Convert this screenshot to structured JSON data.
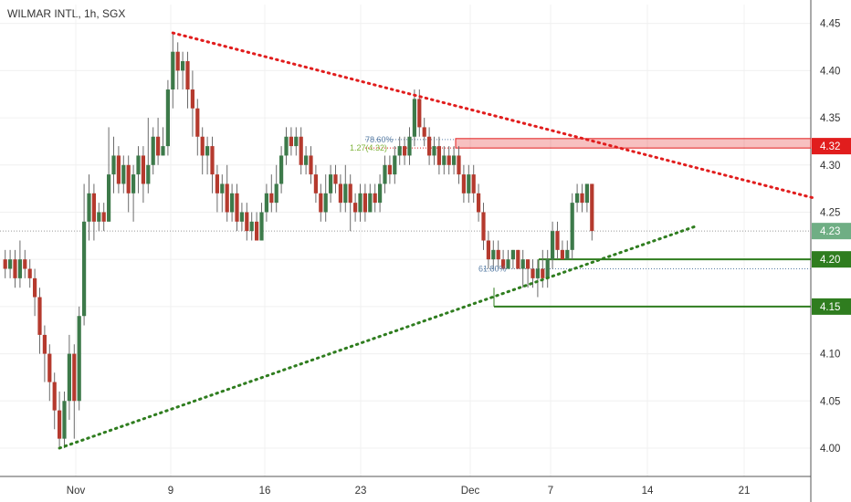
{
  "header": {
    "title": "WILMAR INTL, 1h, SGX"
  },
  "colors": {
    "bull": "#3d7a4a",
    "bear": "#b53a2e",
    "resistance": "#e11d1d",
    "support": "#2f7d1f",
    "current": "#6fae84",
    "grid": "#f0f0f0",
    "axis": "#555555"
  },
  "chart_data": {
    "type": "candlestick",
    "symbol": "WILMAR INTL",
    "interval": "1h",
    "exchange": "SGX",
    "y_axis": {
      "min": 3.97,
      "max": 4.47,
      "ticks": [
        "4.00",
        "4.05",
        "4.10",
        "4.15",
        "4.20",
        "4.25",
        "4.30",
        "4.35",
        "4.40",
        "4.45"
      ]
    },
    "x_axis": {
      "ticks": [
        "Nov",
        "9",
        "16",
        "23",
        "Dec",
        "7",
        "14",
        "21"
      ]
    },
    "price_tags": [
      {
        "label": "4.32",
        "value": 4.32,
        "kind": "resistance"
      },
      {
        "label": "4.23",
        "value": 4.23,
        "kind": "current"
      },
      {
        "label": "4.20",
        "value": 4.2,
        "kind": "support"
      },
      {
        "label": "4.15",
        "value": 4.15,
        "kind": "support"
      }
    ],
    "resistance_zone": {
      "from": 4.318,
      "to": 4.328
    },
    "current_price": 4.23,
    "support_levels": [
      4.2,
      4.15
    ],
    "trendlines": [
      {
        "name": "descending",
        "from": {
          "bar": 34,
          "price": 4.44
        },
        "to": {
          "bar": 164,
          "price": 4.265
        }
      },
      {
        "name": "ascending",
        "from": {
          "bar": 11,
          "price": 4.0
        },
        "to": {
          "bar": 140,
          "price": 4.235
        }
      }
    ],
    "fib_labels": [
      {
        "label": "78.60%",
        "price": 4.327
      },
      {
        "label": "1.27(4.32)",
        "price": 4.318
      },
      {
        "label": "61.80%",
        "price": 4.19
      }
    ],
    "candles": [
      {
        "o": 4.2,
        "c": 4.19,
        "h": 4.21,
        "l": 4.18
      },
      {
        "o": 4.19,
        "c": 4.2,
        "h": 4.21,
        "l": 4.18
      },
      {
        "o": 4.2,
        "c": 4.18,
        "h": 4.21,
        "l": 4.17
      },
      {
        "o": 4.18,
        "c": 4.2,
        "h": 4.22,
        "l": 4.17
      },
      {
        "o": 4.2,
        "c": 4.19,
        "h": 4.21,
        "l": 4.18
      },
      {
        "o": 4.19,
        "c": 4.18,
        "h": 4.2,
        "l": 4.17
      },
      {
        "o": 4.18,
        "c": 4.16,
        "h": 4.19,
        "l": 4.14
      },
      {
        "o": 4.16,
        "c": 4.12,
        "h": 4.17,
        "l": 4.1
      },
      {
        "o": 4.12,
        "c": 4.1,
        "h": 4.13,
        "l": 4.07
      },
      {
        "o": 4.1,
        "c": 4.07,
        "h": 4.11,
        "l": 4.05
      },
      {
        "o": 4.07,
        "c": 4.04,
        "h": 4.08,
        "l": 4.02
      },
      {
        "o": 4.04,
        "c": 4.01,
        "h": 4.06,
        "l": 4.0
      },
      {
        "o": 4.01,
        "c": 4.05,
        "h": 4.06,
        "l": 4.0
      },
      {
        "o": 4.05,
        "c": 4.1,
        "h": 4.12,
        "l": 4.03
      },
      {
        "o": 4.1,
        "c": 4.05,
        "h": 4.11,
        "l": 4.01
      },
      {
        "o": 4.05,
        "c": 4.14,
        "h": 4.15,
        "l": 4.04
      },
      {
        "o": 4.14,
        "c": 4.24,
        "h": 4.28,
        "l": 4.13
      },
      {
        "o": 4.24,
        "c": 4.27,
        "h": 4.29,
        "l": 4.22
      },
      {
        "o": 4.27,
        "c": 4.24,
        "h": 4.28,
        "l": 4.22
      },
      {
        "o": 4.24,
        "c": 4.25,
        "h": 4.26,
        "l": 4.23
      },
      {
        "o": 4.25,
        "c": 4.24,
        "h": 4.26,
        "l": 4.23
      },
      {
        "o": 4.24,
        "c": 4.29,
        "h": 4.34,
        "l": 4.24
      },
      {
        "o": 4.29,
        "c": 4.31,
        "h": 4.33,
        "l": 4.27
      },
      {
        "o": 4.31,
        "c": 4.28,
        "h": 4.32,
        "l": 4.27
      },
      {
        "o": 4.28,
        "c": 4.3,
        "h": 4.31,
        "l": 4.27
      },
      {
        "o": 4.3,
        "c": 4.27,
        "h": 4.31,
        "l": 4.25
      },
      {
        "o": 4.27,
        "c": 4.29,
        "h": 4.3,
        "l": 4.24
      },
      {
        "o": 4.29,
        "c": 4.31,
        "h": 4.32,
        "l": 4.27
      },
      {
        "o": 4.31,
        "c": 4.28,
        "h": 4.32,
        "l": 4.26
      },
      {
        "o": 4.28,
        "c": 4.3,
        "h": 4.35,
        "l": 4.27
      },
      {
        "o": 4.3,
        "c": 4.33,
        "h": 4.34,
        "l": 4.29
      },
      {
        "o": 4.33,
        "c": 4.31,
        "h": 4.35,
        "l": 4.3
      },
      {
        "o": 4.31,
        "c": 4.32,
        "h": 4.34,
        "l": 4.31
      },
      {
        "o": 4.32,
        "c": 4.38,
        "h": 4.39,
        "l": 4.31
      },
      {
        "o": 4.38,
        "c": 4.42,
        "h": 4.44,
        "l": 4.36
      },
      {
        "o": 4.42,
        "c": 4.4,
        "h": 4.43,
        "l": 4.38
      },
      {
        "o": 4.4,
        "c": 4.41,
        "h": 4.42,
        "l": 4.38
      },
      {
        "o": 4.41,
        "c": 4.38,
        "h": 4.42,
        "l": 4.36
      },
      {
        "o": 4.38,
        "c": 4.36,
        "h": 4.4,
        "l": 4.33
      },
      {
        "o": 4.36,
        "c": 4.33,
        "h": 4.37,
        "l": 4.31
      },
      {
        "o": 4.33,
        "c": 4.31,
        "h": 4.34,
        "l": 4.29
      },
      {
        "o": 4.31,
        "c": 4.32,
        "h": 4.33,
        "l": 4.29
      },
      {
        "o": 4.32,
        "c": 4.29,
        "h": 4.33,
        "l": 4.27
      },
      {
        "o": 4.29,
        "c": 4.27,
        "h": 4.3,
        "l": 4.25
      },
      {
        "o": 4.27,
        "c": 4.28,
        "h": 4.29,
        "l": 4.25
      },
      {
        "o": 4.28,
        "c": 4.25,
        "h": 4.3,
        "l": 4.24
      },
      {
        "o": 4.25,
        "c": 4.27,
        "h": 4.28,
        "l": 4.24
      },
      {
        "o": 4.27,
        "c": 4.24,
        "h": 4.28,
        "l": 4.23
      },
      {
        "o": 4.24,
        "c": 4.25,
        "h": 4.26,
        "l": 4.23
      },
      {
        "o": 4.25,
        "c": 4.23,
        "h": 4.26,
        "l": 4.22
      },
      {
        "o": 4.23,
        "c": 4.24,
        "h": 4.25,
        "l": 4.22
      },
      {
        "o": 4.24,
        "c": 4.22,
        "h": 4.25,
        "l": 4.22
      },
      {
        "o": 4.22,
        "c": 4.25,
        "h": 4.26,
        "l": 4.22
      },
      {
        "o": 4.25,
        "c": 4.27,
        "h": 4.28,
        "l": 4.24
      },
      {
        "o": 4.27,
        "c": 4.26,
        "h": 4.29,
        "l": 4.25
      },
      {
        "o": 4.26,
        "c": 4.28,
        "h": 4.3,
        "l": 4.25
      },
      {
        "o": 4.28,
        "c": 4.31,
        "h": 4.32,
        "l": 4.27
      },
      {
        "o": 4.31,
        "c": 4.33,
        "h": 4.34,
        "l": 4.3
      },
      {
        "o": 4.33,
        "c": 4.32,
        "h": 4.34,
        "l": 4.31
      },
      {
        "o": 4.32,
        "c": 4.33,
        "h": 4.34,
        "l": 4.31
      },
      {
        "o": 4.33,
        "c": 4.3,
        "h": 4.34,
        "l": 4.29
      },
      {
        "o": 4.3,
        "c": 4.31,
        "h": 4.32,
        "l": 4.29
      },
      {
        "o": 4.31,
        "c": 4.29,
        "h": 4.32,
        "l": 4.28
      },
      {
        "o": 4.29,
        "c": 4.27,
        "h": 4.3,
        "l": 4.26
      },
      {
        "o": 4.27,
        "c": 4.25,
        "h": 4.28,
        "l": 4.24
      },
      {
        "o": 4.25,
        "c": 4.27,
        "h": 4.29,
        "l": 4.24
      },
      {
        "o": 4.27,
        "c": 4.29,
        "h": 4.3,
        "l": 4.26
      },
      {
        "o": 4.29,
        "c": 4.28,
        "h": 4.3,
        "l": 4.27
      },
      {
        "o": 4.28,
        "c": 4.26,
        "h": 4.29,
        "l": 4.25
      },
      {
        "o": 4.26,
        "c": 4.28,
        "h": 4.3,
        "l": 4.25
      },
      {
        "o": 4.28,
        "c": 4.26,
        "h": 4.29,
        "l": 4.23
      },
      {
        "o": 4.26,
        "c": 4.25,
        "h": 4.27,
        "l": 4.24
      },
      {
        "o": 4.25,
        "c": 4.27,
        "h": 4.28,
        "l": 4.24
      },
      {
        "o": 4.27,
        "c": 4.25,
        "h": 4.28,
        "l": 4.24
      },
      {
        "o": 4.25,
        "c": 4.27,
        "h": 4.28,
        "l": 4.25
      },
      {
        "o": 4.27,
        "c": 4.26,
        "h": 4.28,
        "l": 4.25
      },
      {
        "o": 4.26,
        "c": 4.28,
        "h": 4.29,
        "l": 4.25
      },
      {
        "o": 4.28,
        "c": 4.3,
        "h": 4.31,
        "l": 4.27
      },
      {
        "o": 4.3,
        "c": 4.29,
        "h": 4.31,
        "l": 4.28
      },
      {
        "o": 4.29,
        "c": 4.31,
        "h": 4.32,
        "l": 4.28
      },
      {
        "o": 4.31,
        "c": 4.32,
        "h": 4.33,
        "l": 4.3
      },
      {
        "o": 4.32,
        "c": 4.31,
        "h": 4.33,
        "l": 4.3
      },
      {
        "o": 4.31,
        "c": 4.33,
        "h": 4.34,
        "l": 4.3
      },
      {
        "o": 4.33,
        "c": 4.37,
        "h": 4.38,
        "l": 4.32
      },
      {
        "o": 4.37,
        "c": 4.34,
        "h": 4.38,
        "l": 4.33
      },
      {
        "o": 4.34,
        "c": 4.33,
        "h": 4.35,
        "l": 4.32
      },
      {
        "o": 4.33,
        "c": 4.31,
        "h": 4.34,
        "l": 4.3
      },
      {
        "o": 4.31,
        "c": 4.32,
        "h": 4.33,
        "l": 4.3
      },
      {
        "o": 4.32,
        "c": 4.3,
        "h": 4.33,
        "l": 4.29
      },
      {
        "o": 4.3,
        "c": 4.31,
        "h": 4.32,
        "l": 4.29
      },
      {
        "o": 4.31,
        "c": 4.3,
        "h": 4.32,
        "l": 4.29
      },
      {
        "o": 4.3,
        "c": 4.31,
        "h": 4.32,
        "l": 4.29
      },
      {
        "o": 4.31,
        "c": 4.29,
        "h": 4.32,
        "l": 4.28
      },
      {
        "o": 4.29,
        "c": 4.27,
        "h": 4.3,
        "l": 4.26
      },
      {
        "o": 4.27,
        "c": 4.29,
        "h": 4.3,
        "l": 4.26
      },
      {
        "o": 4.29,
        "c": 4.27,
        "h": 4.3,
        "l": 4.26
      },
      {
        "o": 4.27,
        "c": 4.25,
        "h": 4.28,
        "l": 4.24
      },
      {
        "o": 4.25,
        "c": 4.22,
        "h": 4.26,
        "l": 4.21
      },
      {
        "o": 4.22,
        "c": 4.2,
        "h": 4.23,
        "l": 4.19
      },
      {
        "o": 4.2,
        "c": 4.21,
        "h": 4.22,
        "l": 4.19
      },
      {
        "o": 4.21,
        "c": 4.2,
        "h": 4.22,
        "l": 4.19
      },
      {
        "o": 4.2,
        "c": 4.19,
        "h": 4.21,
        "l": 4.19
      },
      {
        "o": 4.19,
        "c": 4.2,
        "h": 4.21,
        "l": 4.19
      },
      {
        "o": 4.2,
        "c": 4.21,
        "h": 4.21,
        "l": 4.19
      },
      {
        "o": 4.21,
        "c": 4.19,
        "h": 4.21,
        "l": 4.19
      },
      {
        "o": 4.19,
        "c": 4.2,
        "h": 4.21,
        "l": 4.17
      },
      {
        "o": 4.2,
        "c": 4.19,
        "h": 4.2,
        "l": 4.17
      },
      {
        "o": 4.19,
        "c": 4.18,
        "h": 4.2,
        "l": 4.17
      },
      {
        "o": 4.18,
        "c": 4.19,
        "h": 4.2,
        "l": 4.16
      },
      {
        "o": 4.19,
        "c": 4.18,
        "h": 4.21,
        "l": 4.17
      },
      {
        "o": 4.18,
        "c": 4.2,
        "h": 4.21,
        "l": 4.17
      },
      {
        "o": 4.2,
        "c": 4.23,
        "h": 4.24,
        "l": 4.19
      },
      {
        "o": 4.23,
        "c": 4.21,
        "h": 4.24,
        "l": 4.2
      },
      {
        "o": 4.21,
        "c": 4.2,
        "h": 4.22,
        "l": 4.2
      },
      {
        "o": 4.2,
        "c": 4.21,
        "h": 4.22,
        "l": 4.2
      },
      {
        "o": 4.21,
        "c": 4.26,
        "h": 4.27,
        "l": 4.2
      },
      {
        "o": 4.26,
        "c": 4.27,
        "h": 4.28,
        "l": 4.25
      },
      {
        "o": 4.27,
        "c": 4.26,
        "h": 4.28,
        "l": 4.25
      },
      {
        "o": 4.26,
        "c": 4.28,
        "h": 4.28,
        "l": 4.25
      },
      {
        "o": 4.28,
        "c": 4.23,
        "h": 4.28,
        "l": 4.22
      }
    ]
  }
}
